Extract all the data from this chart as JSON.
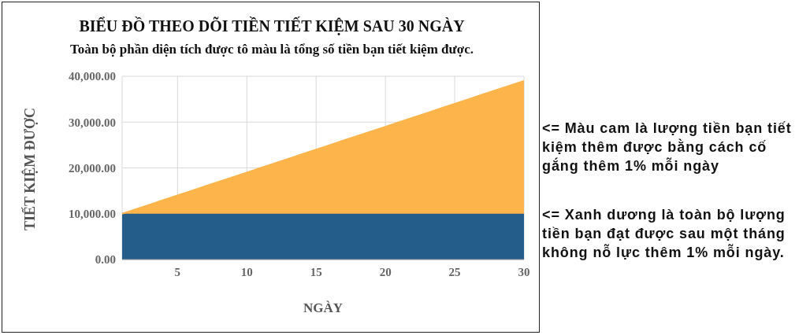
{
  "chart_data": {
    "type": "area",
    "title": "BIỂU ĐỒ THEO DÕI TIỀN TIẾT KIỆM SAU 30 NGÀY",
    "subtitle": "Toàn bộ phần diện tích được tô màu là tổng số tiền bạn tiết kiệm được.",
    "xlabel": "NGÀY",
    "ylabel": "TIẾT KIỆM ĐƯỢC",
    "x": [
      1,
      2,
      3,
      4,
      5,
      6,
      7,
      8,
      9,
      10,
      11,
      12,
      13,
      14,
      15,
      16,
      17,
      18,
      19,
      20,
      21,
      22,
      23,
      24,
      25,
      26,
      27,
      28,
      29,
      30
    ],
    "series": [
      {
        "color": "#245d8a",
        "values": [
          10000,
          10000,
          10000,
          10000,
          10000,
          10000,
          10000,
          10000,
          10000,
          10000,
          10000,
          10000,
          10000,
          10000,
          10000,
          10000,
          10000,
          10000,
          10000,
          10000,
          10000,
          10000,
          10000,
          10000,
          10000,
          10000,
          10000,
          10000,
          10000,
          10000
        ]
      },
      {
        "color": "#fdb44b",
        "values": [
          0,
          1000,
          2000,
          3000,
          4000,
          5000,
          6000,
          7000,
          8000,
          9000,
          10000,
          11000,
          12000,
          13000,
          14000,
          15000,
          16000,
          17000,
          18000,
          19000,
          20000,
          21000,
          22000,
          23000,
          24000,
          25000,
          26000,
          27000,
          28000,
          29000
        ]
      }
    ],
    "stacked": true,
    "xlim": [
      1,
      30
    ],
    "xticks": [
      5,
      10,
      15,
      20,
      25,
      30
    ],
    "ylim": [
      0,
      40000
    ],
    "yticks": [
      {
        "value": 0,
        "label": "0.00"
      },
      {
        "value": 10000,
        "label": "10,000.00"
      },
      {
        "value": 20000,
        "label": "20,000.00"
      },
      {
        "value": 30000,
        "label": "30,000.00"
      },
      {
        "value": 40000,
        "label": "40,000.00"
      }
    ],
    "grid": true,
    "annotations": [
      "<= Màu cam là lượng tiền bạn tiết kiệm thêm được bằng cách cố gắng thêm 1% mỗi ngày",
      "<= Xanh dương là toàn bộ lượng tiền bạn đạt được sau một tháng không nỗ lực thêm 1% mỗi ngày."
    ]
  }
}
